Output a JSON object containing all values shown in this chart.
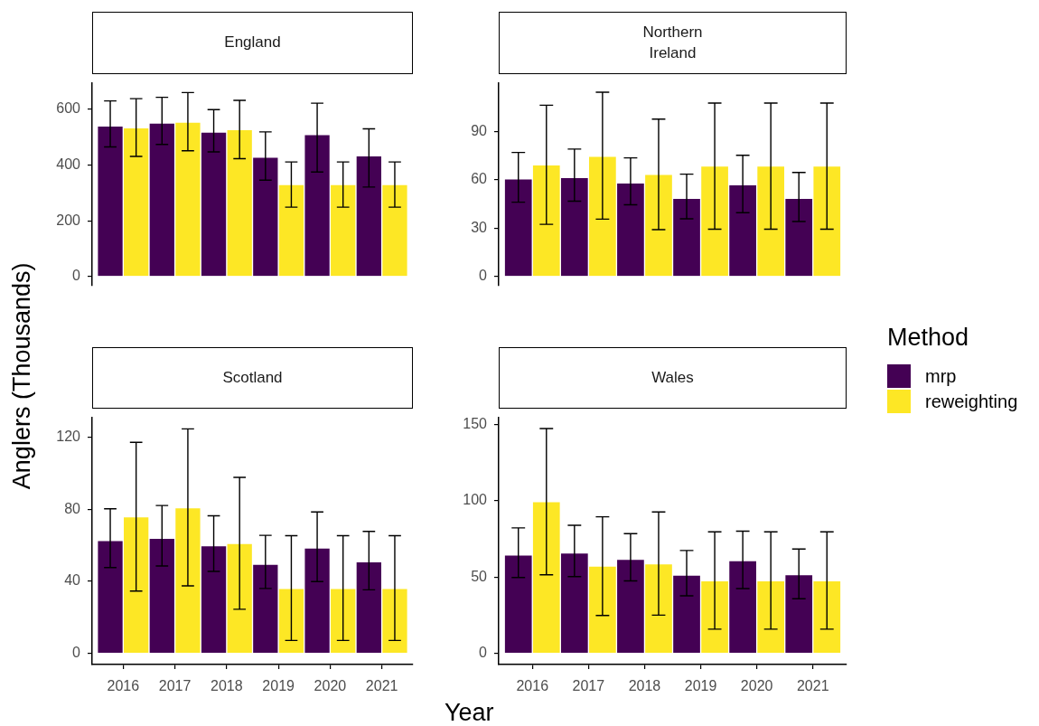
{
  "chart_data": [
    {
      "type": "bar",
      "title": "England",
      "ylabel": "Anglers (Thousands)",
      "categories": [
        "2016",
        "2017",
        "2018",
        "2019",
        "2020",
        "2021"
      ],
      "series": [
        {
          "name": "mrp",
          "color": "#440154",
          "values": [
            540,
            551,
            518,
            428,
            509,
            433
          ],
          "errors": [
            [
              465,
              630
            ],
            [
              474,
              643
            ],
            [
              447,
              599
            ],
            [
              346,
              519
            ],
            [
              375,
              622
            ],
            [
              321,
              530
            ]
          ]
        },
        {
          "name": "reweighting",
          "color": "#fde725",
          "values": [
            534,
            554,
            527,
            330,
            330,
            330
          ],
          "errors": [
            [
              431,
              638
            ],
            [
              451,
              660
            ],
            [
              423,
              632
            ],
            [
              249,
              411
            ],
            [
              249,
              411
            ],
            [
              249,
              411
            ]
          ]
        }
      ],
      "ylim": [
        -33,
        695
      ],
      "yticks": [
        0,
        200,
        400,
        600
      ],
      "tick_labels": "y",
      "legend": "right",
      "legend_title": "Method"
    },
    {
      "type": "bar",
      "title": "Northern\nIreland",
      "categories": [
        "2016",
        "2017",
        "2018",
        "2019",
        "2020",
        "2021"
      ],
      "series": [
        {
          "color": "#440154",
          "values": [
            60.6,
            61.5,
            58.1,
            48.5,
            56.9,
            48.6
          ],
          "errors": [
            [
              46.1,
              77.0
            ],
            [
              46.8,
              79.1
            ],
            [
              44.5,
              73.6
            ],
            [
              35.8,
              63.5
            ],
            [
              39.6,
              75.2
            ],
            [
              34.1,
              64.6
            ]
          ]
        },
        {
          "color": "#fde725",
          "values": [
            69.3,
            74.6,
            63.4,
            68.6,
            68.6,
            68.6
          ],
          "errors": [
            [
              32.4,
              106.3
            ],
            [
              35.6,
              114.4
            ],
            [
              29.1,
              97.7
            ],
            [
              29.4,
              107.6
            ],
            [
              29.4,
              107.6
            ],
            [
              29.4,
              107.6
            ]
          ]
        }
      ],
      "ylim": [
        -5.7,
        120.2
      ],
      "yticks": [
        0,
        30,
        60,
        90
      ],
      "tick_labels": "y"
    },
    {
      "type": "bar",
      "title": "Scotland",
      "xlabel": "Year",
      "categories": [
        "2016",
        "2017",
        "2018",
        "2019",
        "2020",
        "2021"
      ],
      "series": [
        {
          "color": "#440154",
          "values": [
            62.7,
            64.0,
            59.8,
            49.6,
            58.6,
            50.9
          ],
          "errors": [
            [
              47.7,
              80.4
            ],
            [
              48.6,
              82.2
            ],
            [
              45.6,
              76.5
            ],
            [
              36.1,
              65.6
            ],
            [
              39.9,
              78.6
            ],
            [
              35.3,
              67.8
            ]
          ]
        },
        {
          "color": "#fde725",
          "values": [
            75.9,
            80.9,
            61.1,
            36.1,
            36.1,
            36.1
          ],
          "errors": [
            [
              34.6,
              117.3
            ],
            [
              37.5,
              124.8
            ],
            [
              24.5,
              97.8
            ],
            [
              7.2,
              65.4
            ],
            [
              7.2,
              65.4
            ],
            [
              7.2,
              65.4
            ]
          ]
        }
      ],
      "ylim": [
        -6.2,
        131.2
      ],
      "yticks": [
        0,
        40,
        80,
        120
      ]
    },
    {
      "type": "bar",
      "title": "Wales",
      "categories": [
        "2016",
        "2017",
        "2018",
        "2019",
        "2020",
        "2021"
      ],
      "series": [
        {
          "color": "#440154",
          "values": [
            64.6,
            65.8,
            61.7,
            51.3,
            60.8,
            51.6
          ],
          "errors": [
            [
              49.7,
              82.3
            ],
            [
              50.3,
              84.0
            ],
            [
              47.5,
              78.5
            ],
            [
              37.7,
              67.5
            ],
            [
              42.5,
              80.2
            ],
            [
              35.8,
              68.4
            ]
          ]
        },
        {
          "color": "#fde725",
          "values": [
            99.5,
            57.2,
            58.7,
            47.6,
            47.6,
            47.6
          ],
          "errors": [
            [
              51.5,
              147.5
            ],
            [
              24.8,
              89.6
            ],
            [
              25.0,
              92.8
            ],
            [
              15.8,
              79.7
            ],
            [
              15.8,
              79.7
            ],
            [
              15.8,
              79.7
            ]
          ]
        }
      ],
      "ylim": [
        -7.4,
        154.9
      ],
      "yticks": [
        0,
        50,
        100,
        150
      ]
    }
  ]
}
